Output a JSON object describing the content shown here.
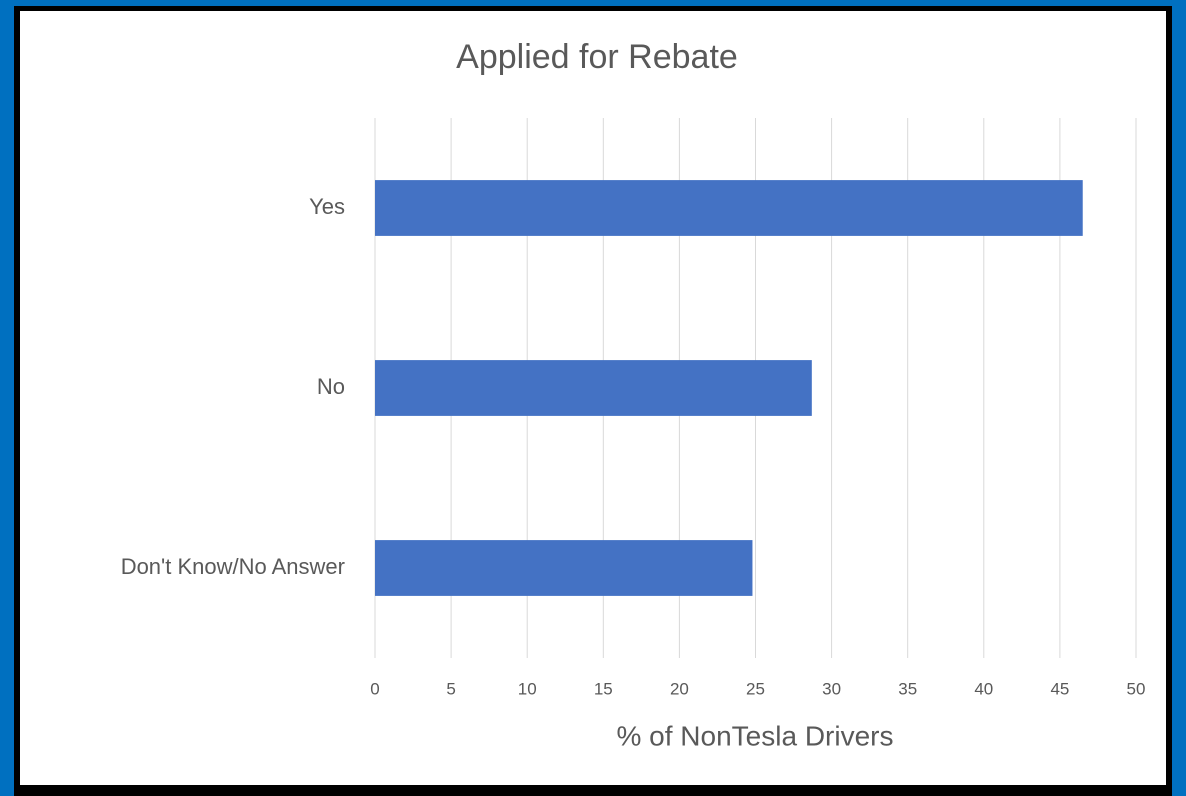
{
  "chart_data": {
    "type": "bar",
    "orientation": "horizontal",
    "title": "Applied for Rebate",
    "categories": [
      "Yes",
      "No",
      "Don't Know/No Answer"
    ],
    "values": [
      46.5,
      28.7,
      24.8
    ],
    "color": "#4472c4",
    "xlim": [
      0,
      50
    ],
    "xticks": [
      0,
      5,
      10,
      15,
      20,
      25,
      30,
      35,
      40,
      45,
      50
    ],
    "xlabel": "% of NonTesla Drivers",
    "grid": true
  }
}
